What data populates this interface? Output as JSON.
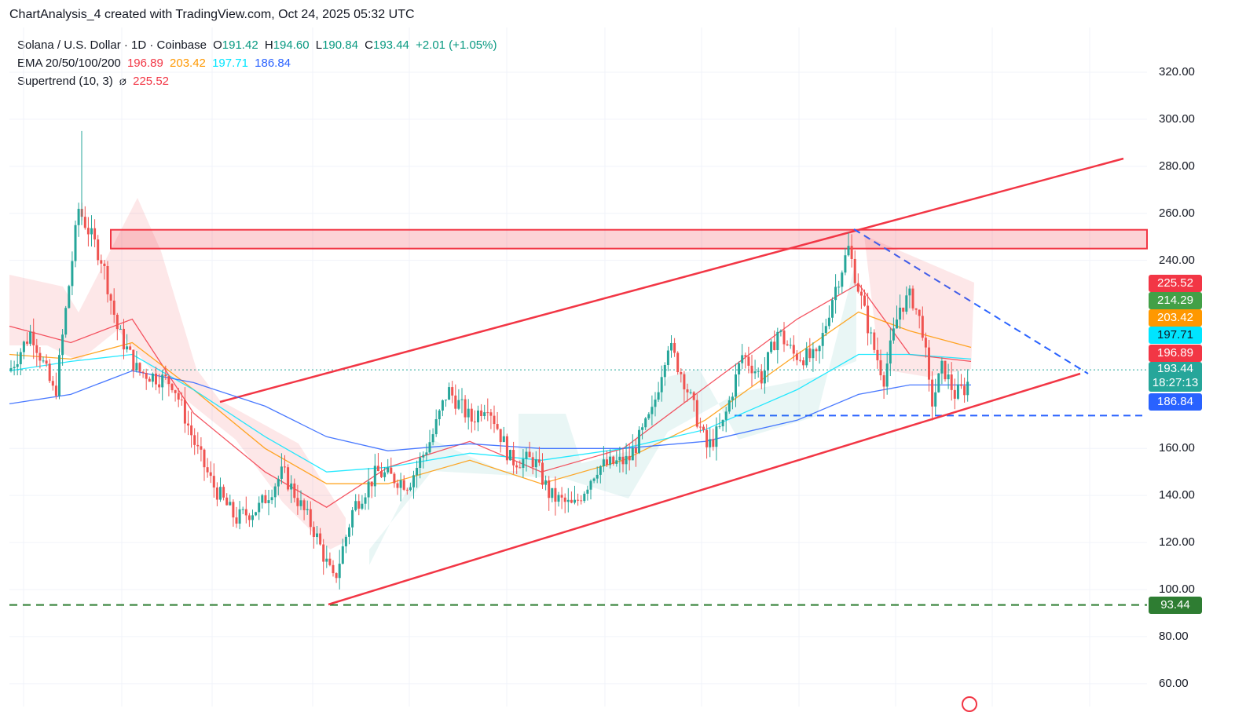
{
  "header": {
    "title": "ChartAnalysis_4 created with TradingView.com, Oct 24, 2025 05:32 UTC"
  },
  "legend": {
    "symbol": "Solana / U.S. Dollar · 1D · Coinbase",
    "o_label": "O",
    "o_value": "191.42",
    "h_label": "H",
    "h_value": "194.60",
    "l_label": "L",
    "l_value": "190.84",
    "c_label": "C",
    "c_value": "193.44",
    "change": "+2.01 (+1.05%)",
    "ema_label": "EMA 20/50/100/200",
    "ema20": "196.89",
    "ema50": "203.42",
    "ema100": "197.71",
    "ema200": "186.84",
    "st_label": "Supertrend (10, 3)",
    "st_symbol": "⌀",
    "st_value": "225.52"
  },
  "colors": {
    "up": "#26a69a",
    "down": "#ef5350",
    "ema20": "#f23645",
    "ema50": "#ff9800",
    "ema100": "#00e5ff",
    "ema200": "#2962ff",
    "channel": "#f23645",
    "support": "#2e7d32",
    "dashed_blue": "#2962ff"
  },
  "chart_data": {
    "type": "candlestick",
    "ylim": [
      55,
      332
    ],
    "y_ticks": [
      "320.00",
      "300.00",
      "280.00",
      "260.00",
      "240.00",
      "160.00",
      "140.00",
      "120.00",
      "100.00",
      "80.00",
      "60.00"
    ],
    "y_tick_values": [
      320,
      300,
      280,
      260,
      240,
      160,
      140,
      120,
      100,
      80,
      60
    ],
    "last_price": 193.44,
    "countdown": "18:27:13",
    "price_tags": [
      {
        "label": "225.52",
        "value": 225.52,
        "color": "#f23645"
      },
      {
        "label": "214.29",
        "value": 214.29,
        "color": "#43a047"
      },
      {
        "label": "203.42",
        "value": 203.42,
        "color": "#ff9800"
      },
      {
        "label": "197.71",
        "value": 197.71,
        "color": "#00e5ff"
      },
      {
        "label": "196.89",
        "value": 196.89,
        "color": "#f23645"
      },
      {
        "label": "186.84",
        "value": 186.84,
        "color": "#2962ff"
      },
      {
        "label": "93.44",
        "value": 93.44,
        "color": "#2e7d32"
      }
    ],
    "resistance_zone": [
      245,
      253
    ],
    "support_level": 93.44,
    "horizontal_support_dashed": 174,
    "ema_path_points": {
      "ema20": [
        [
          0,
          212
        ],
        [
          0.06,
          205
        ],
        [
          0.12,
          215
        ],
        [
          0.18,
          175
        ],
        [
          0.25,
          150
        ],
        [
          0.31,
          135
        ],
        [
          0.37,
          152
        ],
        [
          0.45,
          163
        ],
        [
          0.52,
          150
        ],
        [
          0.6,
          160
        ],
        [
          0.68,
          186
        ],
        [
          0.77,
          215
        ],
        [
          0.83,
          230
        ],
        [
          0.88,
          200
        ],
        [
          0.94,
          197
        ]
      ],
      "ema50": [
        [
          0,
          200
        ],
        [
          0.06,
          198
        ],
        [
          0.12,
          205
        ],
        [
          0.18,
          185
        ],
        [
          0.25,
          160
        ],
        [
          0.31,
          145
        ],
        [
          0.37,
          145
        ],
        [
          0.45,
          155
        ],
        [
          0.52,
          145
        ],
        [
          0.6,
          155
        ],
        [
          0.68,
          172
        ],
        [
          0.77,
          200
        ],
        [
          0.83,
          218
        ],
        [
          0.88,
          210
        ],
        [
          0.94,
          203
        ]
      ],
      "ema100": [
        [
          0,
          193
        ],
        [
          0.06,
          197
        ],
        [
          0.12,
          200
        ],
        [
          0.18,
          185
        ],
        [
          0.25,
          165
        ],
        [
          0.31,
          150
        ],
        [
          0.37,
          152
        ],
        [
          0.45,
          158
        ],
        [
          0.52,
          155
        ],
        [
          0.6,
          160
        ],
        [
          0.68,
          168
        ],
        [
          0.77,
          185
        ],
        [
          0.83,
          200
        ],
        [
          0.88,
          200
        ],
        [
          0.94,
          198
        ]
      ],
      "ema200": [
        [
          0,
          179
        ],
        [
          0.06,
          183
        ],
        [
          0.12,
          193
        ],
        [
          0.18,
          188
        ],
        [
          0.25,
          178
        ],
        [
          0.31,
          165
        ],
        [
          0.37,
          159
        ],
        [
          0.45,
          162
        ],
        [
          0.52,
          160
        ],
        [
          0.6,
          160
        ],
        [
          0.68,
          163
        ],
        [
          0.77,
          172
        ],
        [
          0.83,
          183
        ],
        [
          0.88,
          187
        ],
        [
          0.94,
          187
        ]
      ]
    }
  }
}
